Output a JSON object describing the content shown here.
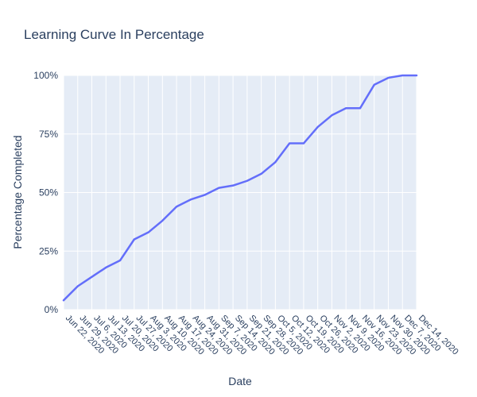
{
  "title": "Learning Curve In Percentage",
  "colors": {
    "line": "#636efa",
    "plot_bg": "#e5ecf6",
    "grid": "#ffffff",
    "title_text": "#2a3f5f",
    "tick_text": "#2a3f5f",
    "page_bg": "#ffffff"
  },
  "chart_data": {
    "type": "line",
    "title": "Learning Curve In Percentage",
    "xlabel": "Date",
    "ylabel": "Percentage Completed",
    "ylim": [
      0,
      100
    ],
    "yticks": [
      "0%",
      "25%",
      "50%",
      "75%",
      "100%"
    ],
    "grid": true,
    "legend_position": "none",
    "x": [
      "Jun 22, 2020",
      "Jun 29, 2020",
      "Jul 6, 2020",
      "Jul 13, 2020",
      "Jul 20, 2020",
      "Jul 27, 2020",
      "Aug 3, 2020",
      "Aug 10, 2020",
      "Aug 17, 2020",
      "Aug 24, 2020",
      "Aug 31, 2020",
      "Sep 7, 2020",
      "Sep 14, 2020",
      "Sep 21, 2020",
      "Sep 28, 2020",
      "Oct 5, 2020",
      "Oct 12, 2020",
      "Oct 19, 2020",
      "Oct 26, 2020",
      "Nov 2, 2020",
      "Nov 9, 2020",
      "Nov 16, 2020",
      "Nov 23, 2020",
      "Nov 30, 2020",
      "Dec 7, 2020",
      "Dec 14, 2020"
    ],
    "values": [
      4,
      10,
      14,
      18,
      21,
      30,
      33,
      38,
      44,
      47,
      49,
      52,
      53,
      55,
      58,
      63,
      71,
      71,
      78,
      83,
      86,
      86,
      96,
      99,
      100,
      100
    ]
  }
}
